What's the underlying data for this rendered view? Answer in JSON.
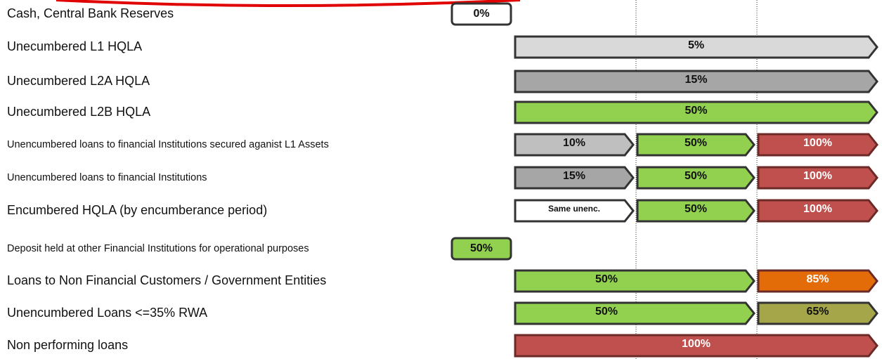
{
  "rows": [
    {
      "label": "Cash, Central Bank Reserves",
      "tag": {
        "text": "0%",
        "color": "#ffffff"
      }
    },
    {
      "label": "Unecumbered L1 HQLA",
      "bars": [
        {
          "text": "5%",
          "color": "#d9d9d9"
        }
      ]
    },
    {
      "label": "Unecumbered L2A HQLA",
      "bars": [
        {
          "text": "15%",
          "color": "#a6a6a6"
        }
      ]
    },
    {
      "label": "Unecumbered L2B HQLA",
      "bars": [
        {
          "text": "50%",
          "color": "#92d050"
        }
      ]
    },
    {
      "label": "Unencumbered loans to financial Institutions secured aganist L1 Assets",
      "bars": [
        {
          "text": "10%",
          "color": "#bfbfbf"
        },
        {
          "text": "50%",
          "color": "#92d050"
        },
        {
          "text": "100%",
          "color": "#c0504d"
        }
      ]
    },
    {
      "label": "Unencumbered loans to financial Institutions",
      "bars": [
        {
          "text": "15%",
          "color": "#a6a6a6"
        },
        {
          "text": "50%",
          "color": "#92d050"
        },
        {
          "text": "100%",
          "color": "#c0504d"
        }
      ]
    },
    {
      "label": "Encumbered HQLA (by encumberance period)",
      "bars": [
        {
          "text": "Same unenc.",
          "color": "#ffffff"
        },
        {
          "text": "50%",
          "color": "#92d050"
        },
        {
          "text": "100%",
          "color": "#c0504d"
        }
      ]
    },
    {
      "label": "Deposit held at other Financial Institutions for operational purposes",
      "tag": {
        "text": "50%",
        "color": "#92d050"
      }
    },
    {
      "label": "Loans to  Non Financial Customers / Government Entities",
      "bars": [
        {
          "text": "50%",
          "color": "#92d050"
        },
        {
          "text": "85%",
          "color": "#e36c09"
        }
      ]
    },
    {
      "label": "Unencumbered Loans <=35% RWA",
      "bars": [
        {
          "text": "50%",
          "color": "#92d050"
        },
        {
          "text": "65%",
          "color": "#a5a54a"
        }
      ]
    },
    {
      "label": "Non performing loans",
      "bars": [
        {
          "text": "100%",
          "color": "#c0504d"
        }
      ]
    }
  ]
}
